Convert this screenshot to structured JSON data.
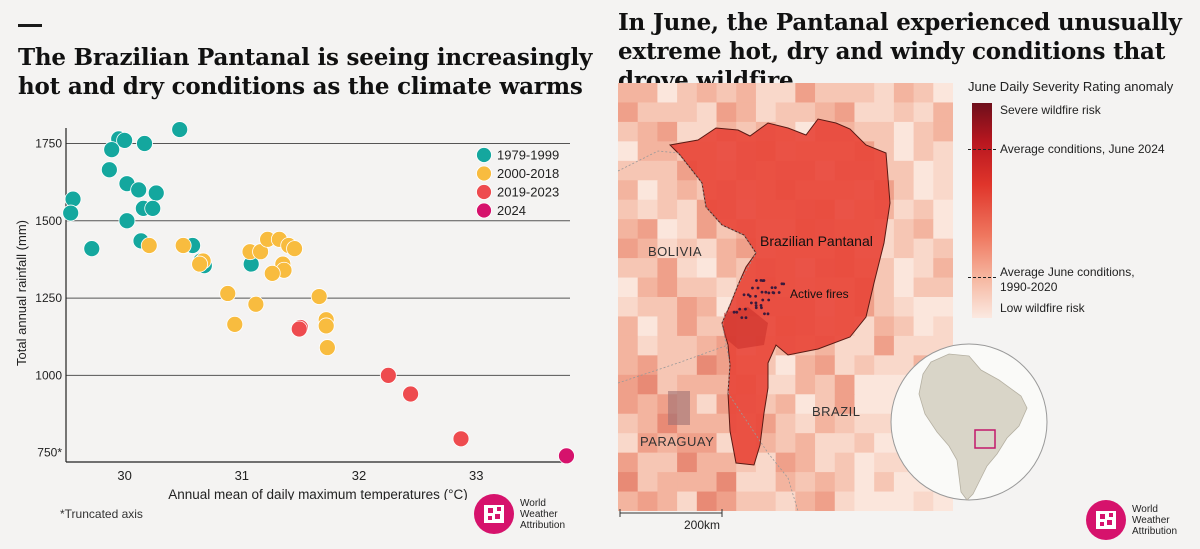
{
  "left": {
    "title": "The Brazilian Pantanal is seeing increasingly hot and dry conditions as the climate warms",
    "footnote": "*Truncated axis",
    "logo": {
      "line1": "World",
      "line2": "Weather",
      "line3": "Attribution"
    }
  },
  "right": {
    "title": "In June, the Pantanal experienced unusually extreme hot, dry and windy conditions that drove wildfire",
    "legend": {
      "title": "June Daily Severity Rating anomaly",
      "high": "Severe wildfire risk",
      "june2024": "Average conditions, June 2024",
      "avg_line1": "Average June conditions,",
      "avg_line2": "1990-2020",
      "low": "Low wildfire risk"
    },
    "labels": {
      "pantanal": "Brazilian Pantanal",
      "fires": "Active fires",
      "bolivia": "BOLIVIA",
      "brazil": "BRAZIL",
      "paraguay": "PARAGUAY"
    },
    "scale": "200km",
    "logo": {
      "line1": "World",
      "line2": "Weather",
      "line3": "Attribution"
    },
    "colors": {
      "high": "#6e0f1b",
      "mid": "#e0352b",
      "low": "#fbe9e1",
      "inset_box": "#c2186b"
    }
  },
  "chart_data": {
    "type": "scatter",
    "title": "The Brazilian Pantanal is seeing increasingly hot and dry conditions as the climate warms",
    "xlabel": "Annual mean of daily maximum temperatures (°C)",
    "ylabel": "Total annual rainfall (mm)",
    "xlim": [
      29.5,
      33.8
    ],
    "ylim": [
      720,
      1800
    ],
    "xticks": [
      30,
      31,
      32,
      33
    ],
    "yticks": [
      750,
      1000,
      1250,
      1500,
      1750
    ],
    "ytick_labels": [
      "750*",
      "1000",
      "1250",
      "1500",
      "1750"
    ],
    "grid": "horizontal",
    "legend_position": "top-right",
    "series": [
      {
        "name": "1979-1999",
        "color": "#14a79e",
        "points": [
          [
            30.47,
            1795
          ],
          [
            29.95,
            1765
          ],
          [
            30.0,
            1760
          ],
          [
            30.17,
            1750
          ],
          [
            29.89,
            1730
          ],
          [
            29.87,
            1665
          ],
          [
            30.02,
            1620
          ],
          [
            30.12,
            1600
          ],
          [
            30.27,
            1590
          ],
          [
            29.56,
            1570
          ],
          [
            30.16,
            1540
          ],
          [
            30.24,
            1540
          ],
          [
            29.54,
            1525
          ],
          [
            30.02,
            1500
          ],
          [
            30.14,
            1435
          ],
          [
            29.72,
            1410
          ],
          [
            30.58,
            1420
          ],
          [
            30.65,
            1370
          ],
          [
            30.68,
            1355
          ],
          [
            31.08,
            1360
          ]
        ]
      },
      {
        "name": "2000-2018",
        "color": "#f8bc3f",
        "points": [
          [
            30.21,
            1420
          ],
          [
            30.5,
            1420
          ],
          [
            31.07,
            1400
          ],
          [
            31.16,
            1400
          ],
          [
            31.22,
            1440
          ],
          [
            31.32,
            1440
          ],
          [
            31.4,
            1420
          ],
          [
            31.45,
            1410
          ],
          [
            30.67,
            1370
          ],
          [
            30.64,
            1360
          ],
          [
            31.35,
            1360
          ],
          [
            31.36,
            1340
          ],
          [
            31.26,
            1330
          ],
          [
            30.88,
            1265
          ],
          [
            31.12,
            1230
          ],
          [
            31.66,
            1255
          ],
          [
            31.72,
            1180
          ],
          [
            31.72,
            1160
          ],
          [
            30.94,
            1165
          ],
          [
            31.73,
            1090
          ]
        ]
      },
      {
        "name": "2019-2023",
        "color": "#ee4b4f",
        "points": [
          [
            31.5,
            1155
          ],
          [
            31.49,
            1150
          ],
          [
            32.25,
            1000
          ],
          [
            32.44,
            940
          ],
          [
            32.87,
            795
          ]
        ]
      },
      {
        "name": "2024",
        "color": "#d6126c",
        "points": [
          [
            33.77,
            740
          ]
        ]
      }
    ]
  }
}
